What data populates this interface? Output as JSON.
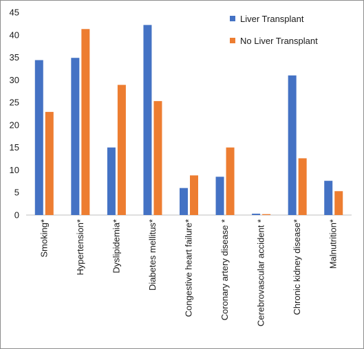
{
  "chart_data": {
    "type": "bar",
    "categories": [
      "Smoking*",
      "Hypertension*",
      "Dyslipidemia*",
      "Diabetes mellitus*",
      "Congestive heart failure*",
      "Coronary artery disease *",
      "Cerebrovascular accident *",
      "Chronic kidney disease*",
      "Malnutrition*"
    ],
    "series": [
      {
        "name": "Liver Transplant",
        "color": "#4472C4",
        "values": [
          34.4,
          34.9,
          15.0,
          42.2,
          6.0,
          8.5,
          0.3,
          31.0,
          7.6
        ]
      },
      {
        "name": "No Liver Transplant",
        "color": "#ED7D31",
        "values": [
          22.9,
          41.3,
          28.9,
          25.3,
          8.8,
          15.0,
          0.2,
          12.6,
          5.3
        ]
      }
    ],
    "ylim": [
      0,
      45
    ],
    "yticks": [
      0,
      5,
      10,
      15,
      20,
      25,
      30,
      35,
      40,
      45
    ],
    "grid": false,
    "legend": "top-right"
  }
}
